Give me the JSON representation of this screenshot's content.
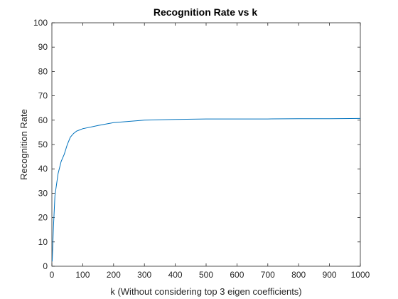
{
  "chart_data": {
    "type": "line",
    "title": "Recognition Rate vs k",
    "xlabel": "k (Without considering top 3 eigen coefficients)",
    "ylabel": "Recognition Rate",
    "xlim": [
      0,
      1000
    ],
    "ylim": [
      0,
      100
    ],
    "xticks": [
      0,
      100,
      200,
      300,
      400,
      500,
      600,
      700,
      800,
      900,
      1000
    ],
    "yticks": [
      0,
      10,
      20,
      30,
      40,
      50,
      60,
      70,
      80,
      90,
      100
    ],
    "grid": false,
    "line_color": "#0072bd",
    "series": [
      {
        "x": [
          1,
          5,
          10,
          20,
          30,
          40,
          50,
          60,
          70,
          80,
          90,
          100,
          150,
          200,
          300,
          400,
          500,
          600,
          700,
          800,
          900,
          1000
        ],
        "values": [
          2,
          16,
          29,
          38,
          43,
          46,
          50,
          53,
          54.5,
          55.5,
          56,
          56.5,
          57.8,
          59,
          60,
          60.3,
          60.5,
          60.5,
          60.5,
          60.6,
          60.6,
          60.7
        ]
      }
    ]
  }
}
